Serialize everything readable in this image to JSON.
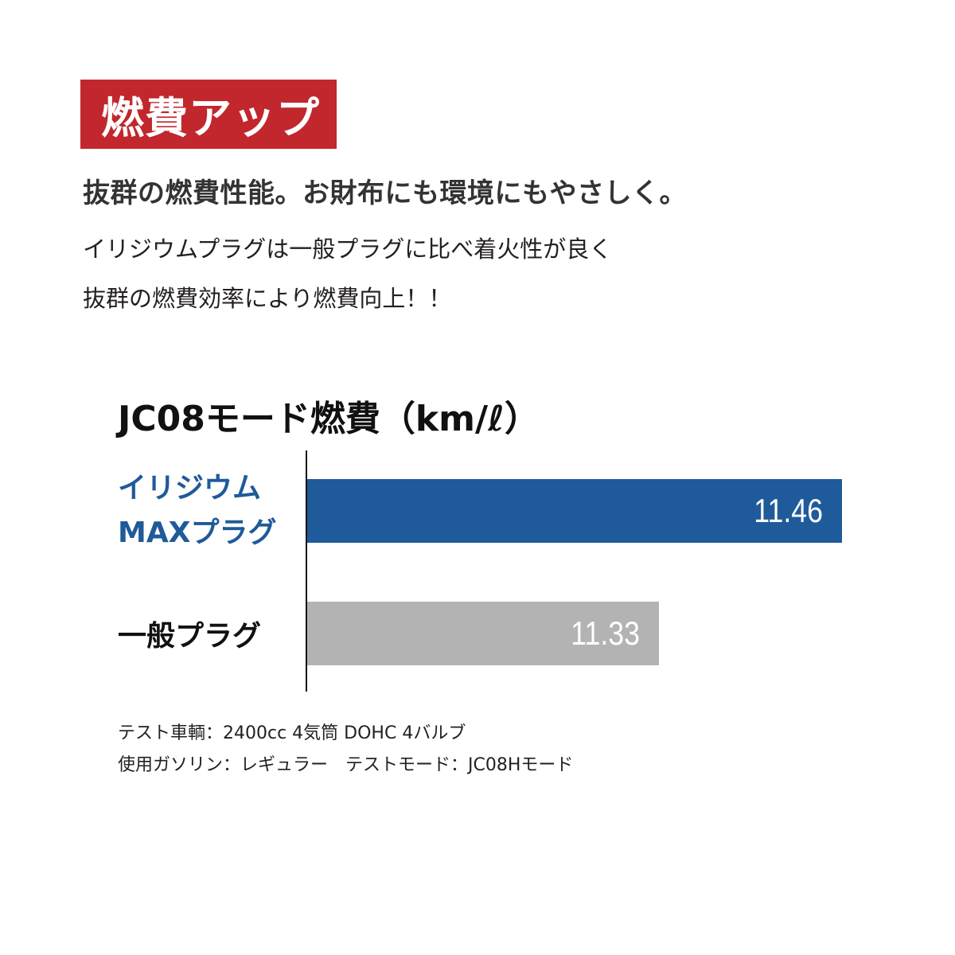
{
  "badge": "燃費アップ",
  "headline": "抜群の燃費性能。お財布にも環境にもやさしく。",
  "description": [
    "イリジウムプラグは一般プラグに比べ着火性が良く",
    "抜群の燃費効率により燃費向上！！"
  ],
  "colors": {
    "badge": "#c1272d",
    "iridium": "#1f5a9a",
    "standard": "#b3b3b3"
  },
  "chart_data": {
    "type": "bar",
    "orientation": "horizontal",
    "title": "JC08モード燃費（km/ℓ）",
    "categories": [
      "イリジウム MAXプラグ",
      "一般プラグ"
    ],
    "category_lines": [
      [
        "イリジウム",
        "MAXプラグ"
      ],
      [
        "一般プラグ"
      ]
    ],
    "values": [
      11.46,
      11.33
    ],
    "value_labels": [
      "11.46",
      "11.33"
    ],
    "xlim": [
      11.08,
      11.46
    ],
    "grid": false
  },
  "notes": [
    "テスト車輌：2400cc 4気筒 DOHC 4バルブ",
    "使用ガソリン：レギュラー　テストモード：JC08Hモード"
  ]
}
